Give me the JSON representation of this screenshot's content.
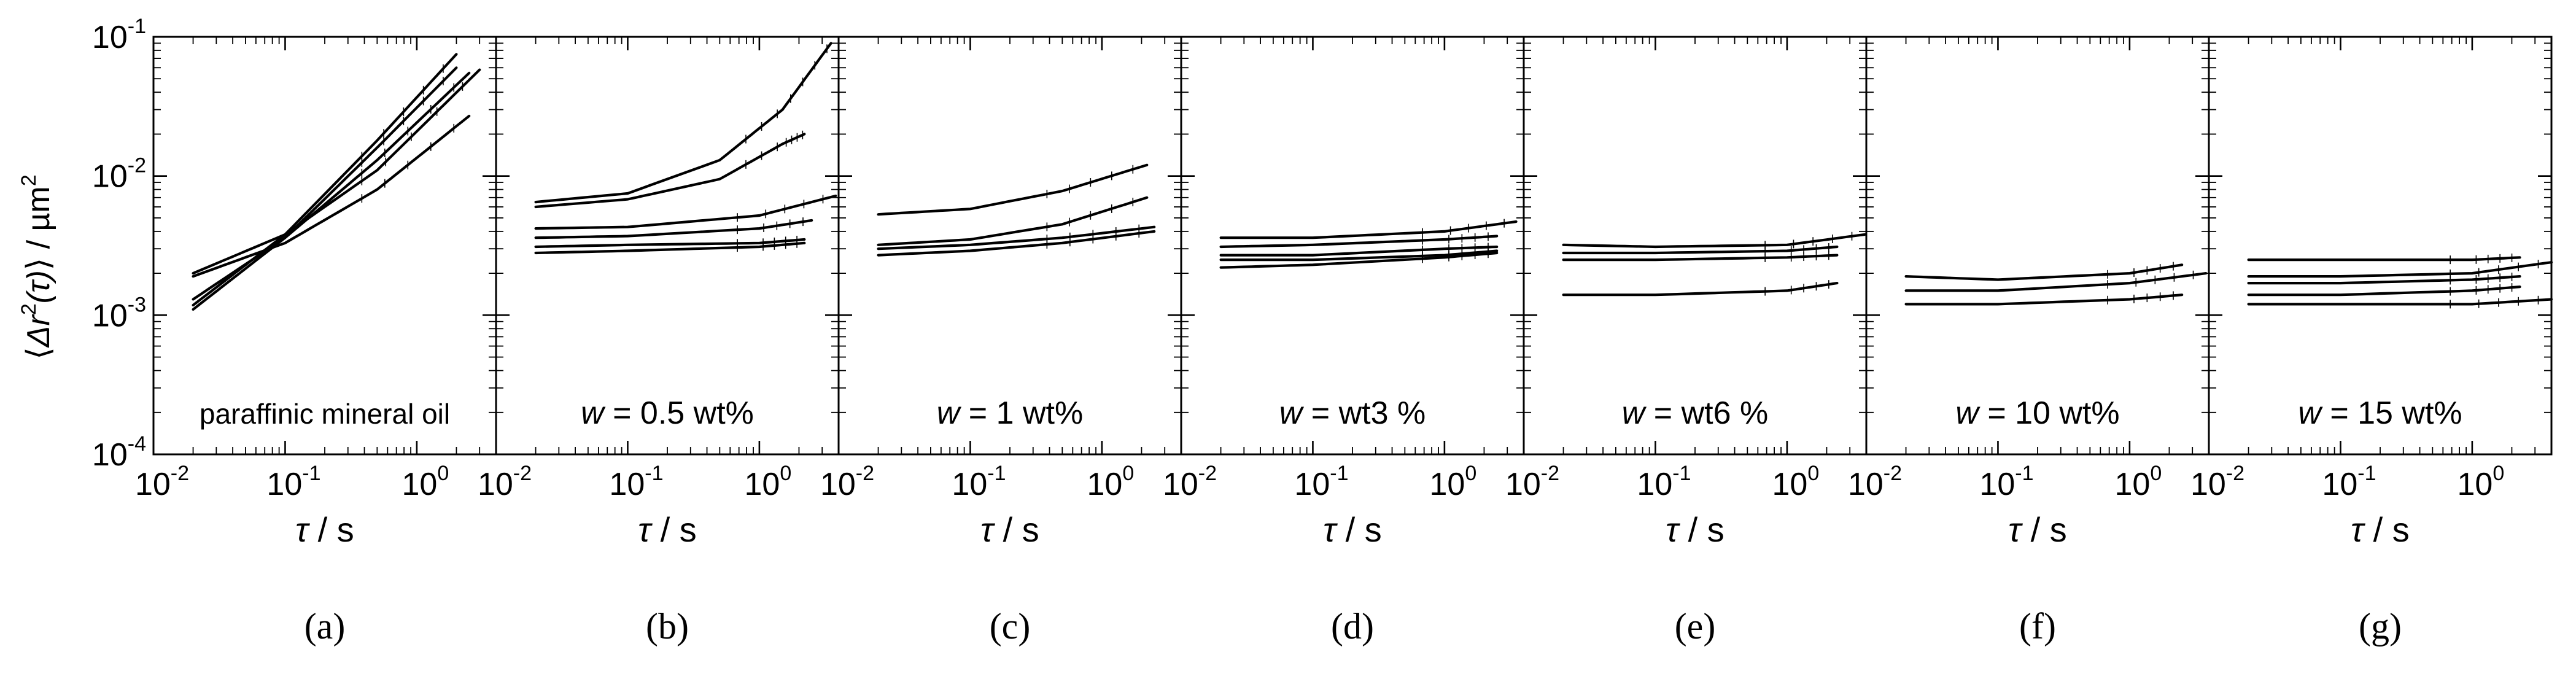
{
  "figure": {
    "ylabel_prefix": "⟨",
    "ylabel_var": "Δr",
    "ylabel_sup": "2",
    "ylabel_arg": "(τ)",
    "ylabel_suffix": "⟩ / µm",
    "ylabel_unit_sup": "2"
  },
  "chart_data": [
    {
      "type": "line",
      "panel": "a",
      "sublabel": "(a)",
      "label_text": "paraffinic mineral oil",
      "label_italic": "",
      "label_rest": "",
      "xlabel_var": "τ",
      "xlabel_unit": " / s",
      "xscale": "log",
      "yscale": "log",
      "xlim": [
        0.01,
        4.0
      ],
      "ylim": [
        0.0001,
        0.1
      ],
      "xticks": [
        0.01,
        0.1,
        1.0
      ],
      "xtick_labels": [
        [
          "10",
          "-2"
        ],
        [
          "10",
          "-1"
        ],
        [
          "10",
          "0"
        ]
      ],
      "yticks": [
        0.0001,
        0.001,
        0.01,
        0.1
      ],
      "ytick_labels": [
        [
          "10",
          "-4"
        ],
        [
          "10",
          "-3"
        ],
        [
          "10",
          "-2"
        ],
        [
          "10",
          "-1"
        ]
      ],
      "series": [
        {
          "name": "curve-1",
          "x": [
            0.02,
            0.1,
            0.5,
            2.0
          ],
          "y": [
            0.0011,
            0.0036,
            0.016,
            0.06
          ]
        },
        {
          "name": "curve-2",
          "x": [
            0.02,
            0.1,
            0.5,
            2.0
          ],
          "y": [
            0.00118,
            0.0038,
            0.018,
            0.075
          ]
        },
        {
          "name": "curve-3",
          "x": [
            0.02,
            0.1,
            0.5,
            2.5
          ],
          "y": [
            0.0013,
            0.0036,
            0.013,
            0.055
          ]
        },
        {
          "name": "curve-4",
          "x": [
            0.02,
            0.1,
            0.5,
            2.5
          ],
          "y": [
            0.0019,
            0.0033,
            0.008,
            0.027
          ]
        },
        {
          "name": "curve-5",
          "x": [
            0.02,
            0.1,
            0.5,
            3.0
          ],
          "y": [
            0.002,
            0.0038,
            0.011,
            0.058
          ]
        }
      ]
    },
    {
      "type": "line",
      "panel": "b",
      "sublabel": "(b)",
      "label_text": "",
      "label_italic": "w",
      "label_rest": " = 0.5 wt%",
      "xlabel_var": "τ",
      "xlabel_unit": " / s",
      "xscale": "log",
      "yscale": "log",
      "xlim": [
        0.01,
        4.0
      ],
      "ylim": [
        0.0001,
        0.1
      ],
      "xticks": [
        0.01,
        0.1,
        1.0
      ],
      "xtick_labels": [
        [
          "10",
          "-2"
        ],
        [
          "10",
          "-1"
        ],
        [
          "10",
          "0"
        ]
      ],
      "yticks": [
        0.0001,
        0.001,
        0.01,
        0.1
      ],
      "ytick_labels": [
        [
          "",
          ""
        ],
        [
          "",
          ""
        ],
        [
          "",
          ""
        ],
        [
          "",
          ""
        ]
      ],
      "series": [
        {
          "name": "curve-1",
          "x": [
            0.02,
            0.1,
            0.5,
            1.5,
            3.5
          ],
          "y": [
            0.0065,
            0.0075,
            0.013,
            0.03,
            0.09
          ]
        },
        {
          "name": "curve-2",
          "x": [
            0.02,
            0.1,
            0.5,
            1.5,
            2.2
          ],
          "y": [
            0.006,
            0.0068,
            0.0095,
            0.017,
            0.02
          ]
        },
        {
          "name": "curve-3",
          "x": [
            0.02,
            0.1,
            1.0,
            3.8
          ],
          "y": [
            0.0042,
            0.0043,
            0.0052,
            0.0072
          ]
        },
        {
          "name": "curve-4",
          "x": [
            0.02,
            0.1,
            1.0,
            2.5
          ],
          "y": [
            0.0036,
            0.0037,
            0.0042,
            0.0048
          ]
        },
        {
          "name": "curve-5",
          "x": [
            0.02,
            0.1,
            1.0,
            2.2
          ],
          "y": [
            0.0031,
            0.0032,
            0.0033,
            0.0035
          ]
        },
        {
          "name": "curve-6",
          "x": [
            0.02,
            0.1,
            1.0,
            2.2
          ],
          "y": [
            0.0028,
            0.0029,
            0.0031,
            0.0033
          ]
        }
      ]
    },
    {
      "type": "line",
      "panel": "c",
      "sublabel": "(c)",
      "label_text": "",
      "label_italic": "w",
      "label_rest": " = 1 wt%",
      "xlabel_var": "τ",
      "xlabel_unit": " / s",
      "xscale": "log",
      "yscale": "log",
      "xlim": [
        0.01,
        4.0
      ],
      "ylim": [
        0.0001,
        0.1
      ],
      "xticks": [
        0.01,
        0.1,
        1.0
      ],
      "xtick_labels": [
        [
          "10",
          "-2"
        ],
        [
          "10",
          "-1"
        ],
        [
          "10",
          "0"
        ]
      ],
      "yticks": [
        0.0001,
        0.001,
        0.01,
        0.1
      ],
      "ytick_labels": [
        [
          "",
          ""
        ],
        [
          "",
          ""
        ],
        [
          "",
          ""
        ],
        [
          "",
          ""
        ]
      ],
      "series": [
        {
          "name": "curve-1",
          "x": [
            0.02,
            0.1,
            0.5,
            2.2
          ],
          "y": [
            0.0053,
            0.0058,
            0.0078,
            0.012
          ]
        },
        {
          "name": "curve-2",
          "x": [
            0.02,
            0.1,
            0.5,
            2.2
          ],
          "y": [
            0.0032,
            0.0035,
            0.0045,
            0.007
          ]
        },
        {
          "name": "curve-3",
          "x": [
            0.02,
            0.1,
            0.5,
            2.5
          ],
          "y": [
            0.003,
            0.0032,
            0.0036,
            0.0043
          ]
        },
        {
          "name": "curve-4",
          "x": [
            0.02,
            0.1,
            0.5,
            2.5
          ],
          "y": [
            0.0027,
            0.0029,
            0.0033,
            0.004
          ]
        }
      ]
    },
    {
      "type": "line",
      "panel": "d",
      "sublabel": "(d)",
      "label_text": "",
      "label_italic": "w",
      "label_rest": " = wt3 %",
      "xlabel_var": "τ",
      "xlabel_unit": " / s",
      "xscale": "log",
      "yscale": "log",
      "xlim": [
        0.01,
        4.0
      ],
      "ylim": [
        0.0001,
        0.1
      ],
      "xticks": [
        0.01,
        0.1,
        1.0
      ],
      "xtick_labels": [
        [
          "10",
          "-2"
        ],
        [
          "10",
          "-1"
        ],
        [
          "10",
          "0"
        ]
      ],
      "yticks": [
        0.0001,
        0.001,
        0.01,
        0.1
      ],
      "ytick_labels": [
        [
          "",
          ""
        ],
        [
          "",
          ""
        ],
        [
          "",
          ""
        ],
        [
          "",
          ""
        ]
      ],
      "series": [
        {
          "name": "curve-1",
          "x": [
            0.02,
            0.1,
            1.0,
            3.5
          ],
          "y": [
            0.0036,
            0.0036,
            0.004,
            0.0047
          ]
        },
        {
          "name": "curve-2",
          "x": [
            0.02,
            0.1,
            1.0,
            2.5
          ],
          "y": [
            0.0031,
            0.0032,
            0.0035,
            0.0037
          ]
        },
        {
          "name": "curve-3",
          "x": [
            0.02,
            0.1,
            1.0,
            2.5
          ],
          "y": [
            0.0027,
            0.0027,
            0.003,
            0.0031
          ]
        },
        {
          "name": "curve-4",
          "x": [
            0.02,
            0.1,
            1.0,
            2.5
          ],
          "y": [
            0.0025,
            0.0025,
            0.0027,
            0.0029
          ]
        },
        {
          "name": "curve-5",
          "x": [
            0.02,
            0.1,
            1.0,
            2.5
          ],
          "y": [
            0.0022,
            0.0023,
            0.0026,
            0.0028
          ]
        }
      ]
    },
    {
      "type": "line",
      "panel": "e",
      "sublabel": "(e)",
      "label_text": "",
      "label_italic": "w",
      "label_rest": " = wt6 %",
      "xlabel_var": "τ",
      "xlabel_unit": " / s",
      "xscale": "log",
      "yscale": "log",
      "xlim": [
        0.01,
        4.0
      ],
      "ylim": [
        0.0001,
        0.1
      ],
      "xticks": [
        0.01,
        0.1,
        1.0
      ],
      "xtick_labels": [
        [
          "10",
          "-2"
        ],
        [
          "10",
          "-1"
        ],
        [
          "10",
          "0"
        ]
      ],
      "yticks": [
        0.0001,
        0.001,
        0.01,
        0.1
      ],
      "ytick_labels": [
        [
          "",
          ""
        ],
        [
          "",
          ""
        ],
        [
          "",
          ""
        ],
        [
          "",
          ""
        ]
      ],
      "series": [
        {
          "name": "curve-1",
          "x": [
            0.02,
            0.1,
            1.0,
            3.9
          ],
          "y": [
            0.0032,
            0.0031,
            0.0032,
            0.0038
          ]
        },
        {
          "name": "curve-2",
          "x": [
            0.02,
            0.1,
            1.0,
            2.4
          ],
          "y": [
            0.0028,
            0.0028,
            0.0029,
            0.0031
          ]
        },
        {
          "name": "curve-3",
          "x": [
            0.02,
            0.1,
            1.0,
            2.4
          ],
          "y": [
            0.0025,
            0.0025,
            0.0026,
            0.0027
          ]
        },
        {
          "name": "curve-4",
          "x": [
            0.02,
            0.1,
            1.0,
            2.4
          ],
          "y": [
            0.0014,
            0.0014,
            0.0015,
            0.0017
          ]
        }
      ]
    },
    {
      "type": "line",
      "panel": "f",
      "sublabel": "(f)",
      "label_text": "",
      "label_italic": "w",
      "label_rest": " = 10 wt%",
      "xlabel_var": "τ",
      "xlabel_unit": " / s",
      "xscale": "log",
      "yscale": "log",
      "xlim": [
        0.01,
        4.0
      ],
      "ylim": [
        0.0001,
        0.1
      ],
      "xticks": [
        0.01,
        0.1,
        1.0
      ],
      "xtick_labels": [
        [
          "10",
          "-2"
        ],
        [
          "10",
          "-1"
        ],
        [
          "10",
          "0"
        ]
      ],
      "yticks": [
        0.0001,
        0.001,
        0.01,
        0.1
      ],
      "ytick_labels": [
        [
          "",
          ""
        ],
        [
          "",
          ""
        ],
        [
          "",
          ""
        ],
        [
          "",
          ""
        ]
      ],
      "series": [
        {
          "name": "curve-1",
          "x": [
            0.02,
            0.1,
            1.0,
            2.5
          ],
          "y": [
            0.0019,
            0.0018,
            0.002,
            0.0023
          ]
        },
        {
          "name": "curve-2",
          "x": [
            0.02,
            0.1,
            1.0,
            3.8
          ],
          "y": [
            0.0015,
            0.0015,
            0.0017,
            0.002
          ]
        },
        {
          "name": "curve-3",
          "x": [
            0.02,
            0.1,
            1.0,
            2.5
          ],
          "y": [
            0.0012,
            0.0012,
            0.0013,
            0.0014
          ]
        }
      ]
    },
    {
      "type": "line",
      "panel": "g",
      "sublabel": "(g)",
      "label_text": "",
      "label_italic": "w",
      "label_rest": " = 15 wt%",
      "xlabel_var": "τ",
      "xlabel_unit": " / s",
      "xscale": "log",
      "yscale": "log",
      "xlim": [
        0.01,
        4.0
      ],
      "ylim": [
        0.0001,
        0.1
      ],
      "xticks": [
        0.01,
        0.1,
        1.0
      ],
      "xtick_labels": [
        [
          "10",
          "-2"
        ],
        [
          "10",
          "-1"
        ],
        [
          "10",
          "0"
        ]
      ],
      "yticks": [
        0.0001,
        0.001,
        0.01,
        0.1
      ],
      "ytick_labels": [
        [
          "",
          ""
        ],
        [
          "",
          ""
        ],
        [
          "",
          ""
        ],
        [
          "",
          ""
        ]
      ],
      "series": [
        {
          "name": "curve-1",
          "x": [
            0.02,
            0.1,
            1.0,
            2.3
          ],
          "y": [
            0.0025,
            0.0025,
            0.0025,
            0.0026
          ]
        },
        {
          "name": "curve-2",
          "x": [
            0.02,
            0.1,
            1.0,
            4.0
          ],
          "y": [
            0.0019,
            0.0019,
            0.002,
            0.0024
          ]
        },
        {
          "name": "curve-3",
          "x": [
            0.02,
            0.1,
            1.0,
            2.3
          ],
          "y": [
            0.0017,
            0.0017,
            0.0018,
            0.0019
          ]
        },
        {
          "name": "curve-4",
          "x": [
            0.02,
            0.1,
            1.0,
            2.3
          ],
          "y": [
            0.0014,
            0.0014,
            0.0015,
            0.0016
          ]
        },
        {
          "name": "curve-5",
          "x": [
            0.02,
            0.1,
            1.0,
            4.0
          ],
          "y": [
            0.0012,
            0.0012,
            0.0012,
            0.0013
          ]
        }
      ]
    }
  ]
}
